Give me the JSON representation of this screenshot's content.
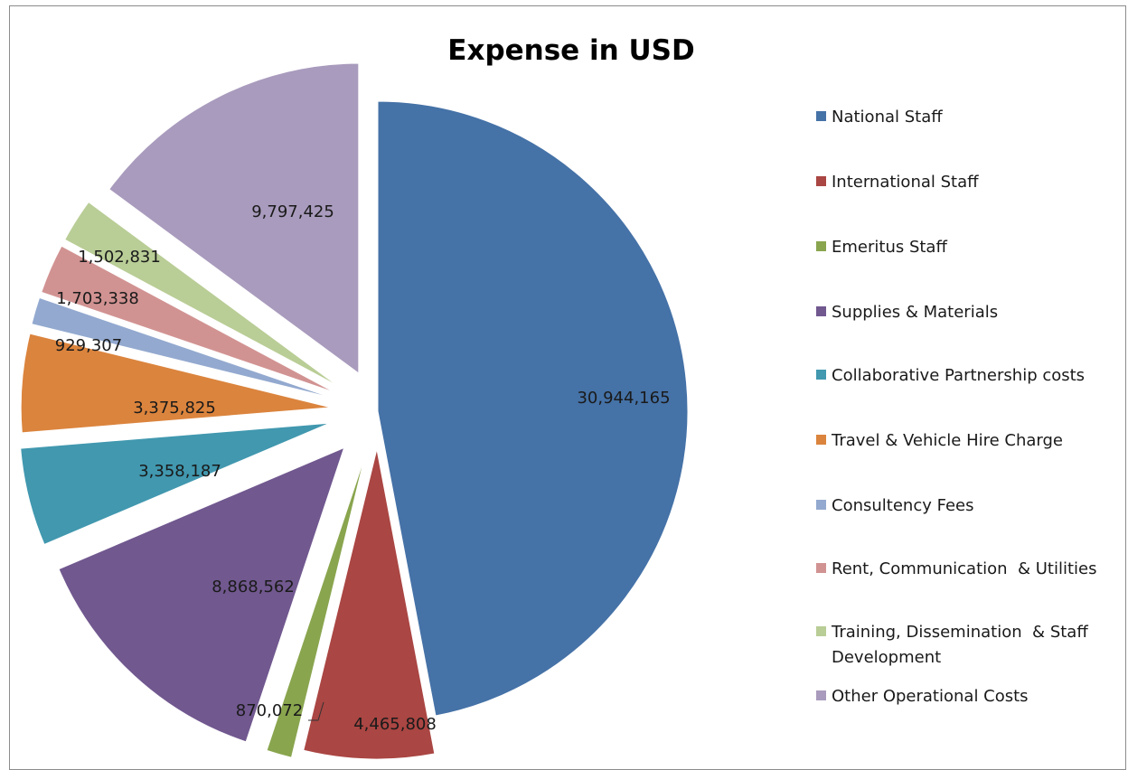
{
  "chart_data": {
    "type": "pie",
    "title": "Expense in USD",
    "legend_position": "right",
    "slices": [
      {
        "label": "National Staff",
        "value": 30944165,
        "value_label": "30,944,165",
        "color": "#4572A7"
      },
      {
        "label": "International Staff",
        "value": 4465808,
        "value_label": "4,465,808",
        "color": "#AA4643"
      },
      {
        "label": "Emeritus Staff",
        "value": 870072,
        "value_label": "870,072",
        "color": "#89A54E"
      },
      {
        "label": "Supplies & Materials",
        "value": 8868562,
        "value_label": "8,868,562",
        "color": "#71588F"
      },
      {
        "label": "Collaborative Partnership costs",
        "value": 3358187,
        "value_label": "3,358,187",
        "color": "#4198AF"
      },
      {
        "label": "Travel & Vehicle Hire Charge",
        "value": 3375825,
        "value_label": "3,375,825",
        "color": "#DB843D"
      },
      {
        "label": "Consultency Fees",
        "value": 929307,
        "value_label": "929,307",
        "color": "#93A9CF"
      },
      {
        "label": "Rent, Communication  & Utilities",
        "value": 1703338,
        "value_label": "1,703,338",
        "color": "#D19392"
      },
      {
        "label": "Training, Dissemination  & Staff Development",
        "value": 1502831,
        "value_label": "1,502,831",
        "color": "#B9CD96"
      },
      {
        "label": "Other Operational Costs",
        "value": 9797425,
        "value_label": "9,797,425",
        "color": "#A99BBD"
      }
    ]
  }
}
